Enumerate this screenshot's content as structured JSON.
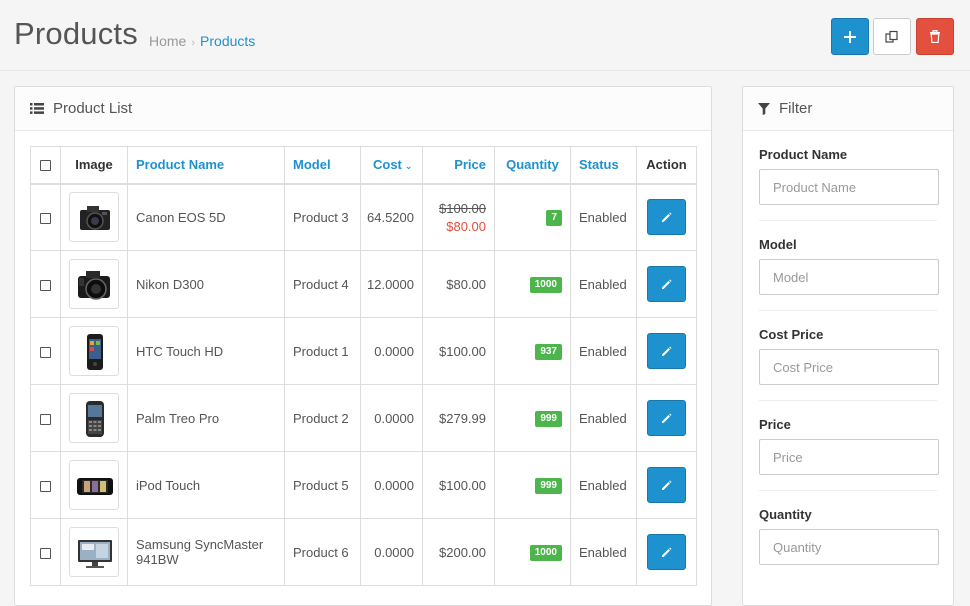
{
  "header": {
    "title": "Products",
    "breadcrumb": [
      "Home",
      "Products"
    ],
    "buttons": {
      "add": "plus-icon",
      "copy": "copy-icon",
      "delete": "trash-icon"
    },
    "colors": {
      "primary": "#1e91cf",
      "danger": "#e3503e",
      "success": "#4cb64c"
    }
  },
  "list_panel": {
    "title": "Product List",
    "columns": {
      "image": "Image",
      "name": "Product Name",
      "model": "Model",
      "cost": "Cost",
      "price": "Price",
      "quantity": "Quantity",
      "status": "Status",
      "action": "Action"
    },
    "rows": [
      {
        "name": "Canon EOS 5D",
        "model": "Product 3",
        "cost": "64.5200",
        "price": "$100.00",
        "special": "$80.00",
        "quantity": "7",
        "status": "Enabled",
        "image": "camera"
      },
      {
        "name": "Nikon D300",
        "model": "Product 4",
        "cost": "12.0000",
        "price": "$80.00",
        "special": "",
        "quantity": "1000",
        "status": "Enabled",
        "image": "dslr"
      },
      {
        "name": "HTC Touch HD",
        "model": "Product 1",
        "cost": "0.0000",
        "price": "$100.00",
        "special": "",
        "quantity": "937",
        "status": "Enabled",
        "image": "phone"
      },
      {
        "name": "Palm Treo Pro",
        "model": "Product 2",
        "cost": "0.0000",
        "price": "$279.99",
        "special": "",
        "quantity": "999",
        "status": "Enabled",
        "image": "smartphone"
      },
      {
        "name": "iPod Touch",
        "model": "Product 5",
        "cost": "0.0000",
        "price": "$100.00",
        "special": "",
        "quantity": "999",
        "status": "Enabled",
        "image": "ipod"
      },
      {
        "name": "Samsung SyncMaster 941BW",
        "model": "Product 6",
        "cost": "0.0000",
        "price": "$200.00",
        "special": "",
        "quantity": "1000",
        "status": "Enabled",
        "image": "monitor"
      }
    ]
  },
  "filter_panel": {
    "title": "Filter",
    "fields": [
      {
        "label": "Product Name",
        "placeholder": "Product Name"
      },
      {
        "label": "Model",
        "placeholder": "Model"
      },
      {
        "label": "Cost Price",
        "placeholder": "Cost Price"
      },
      {
        "label": "Price",
        "placeholder": "Price"
      },
      {
        "label": "Quantity",
        "placeholder": "Quantity"
      }
    ]
  }
}
